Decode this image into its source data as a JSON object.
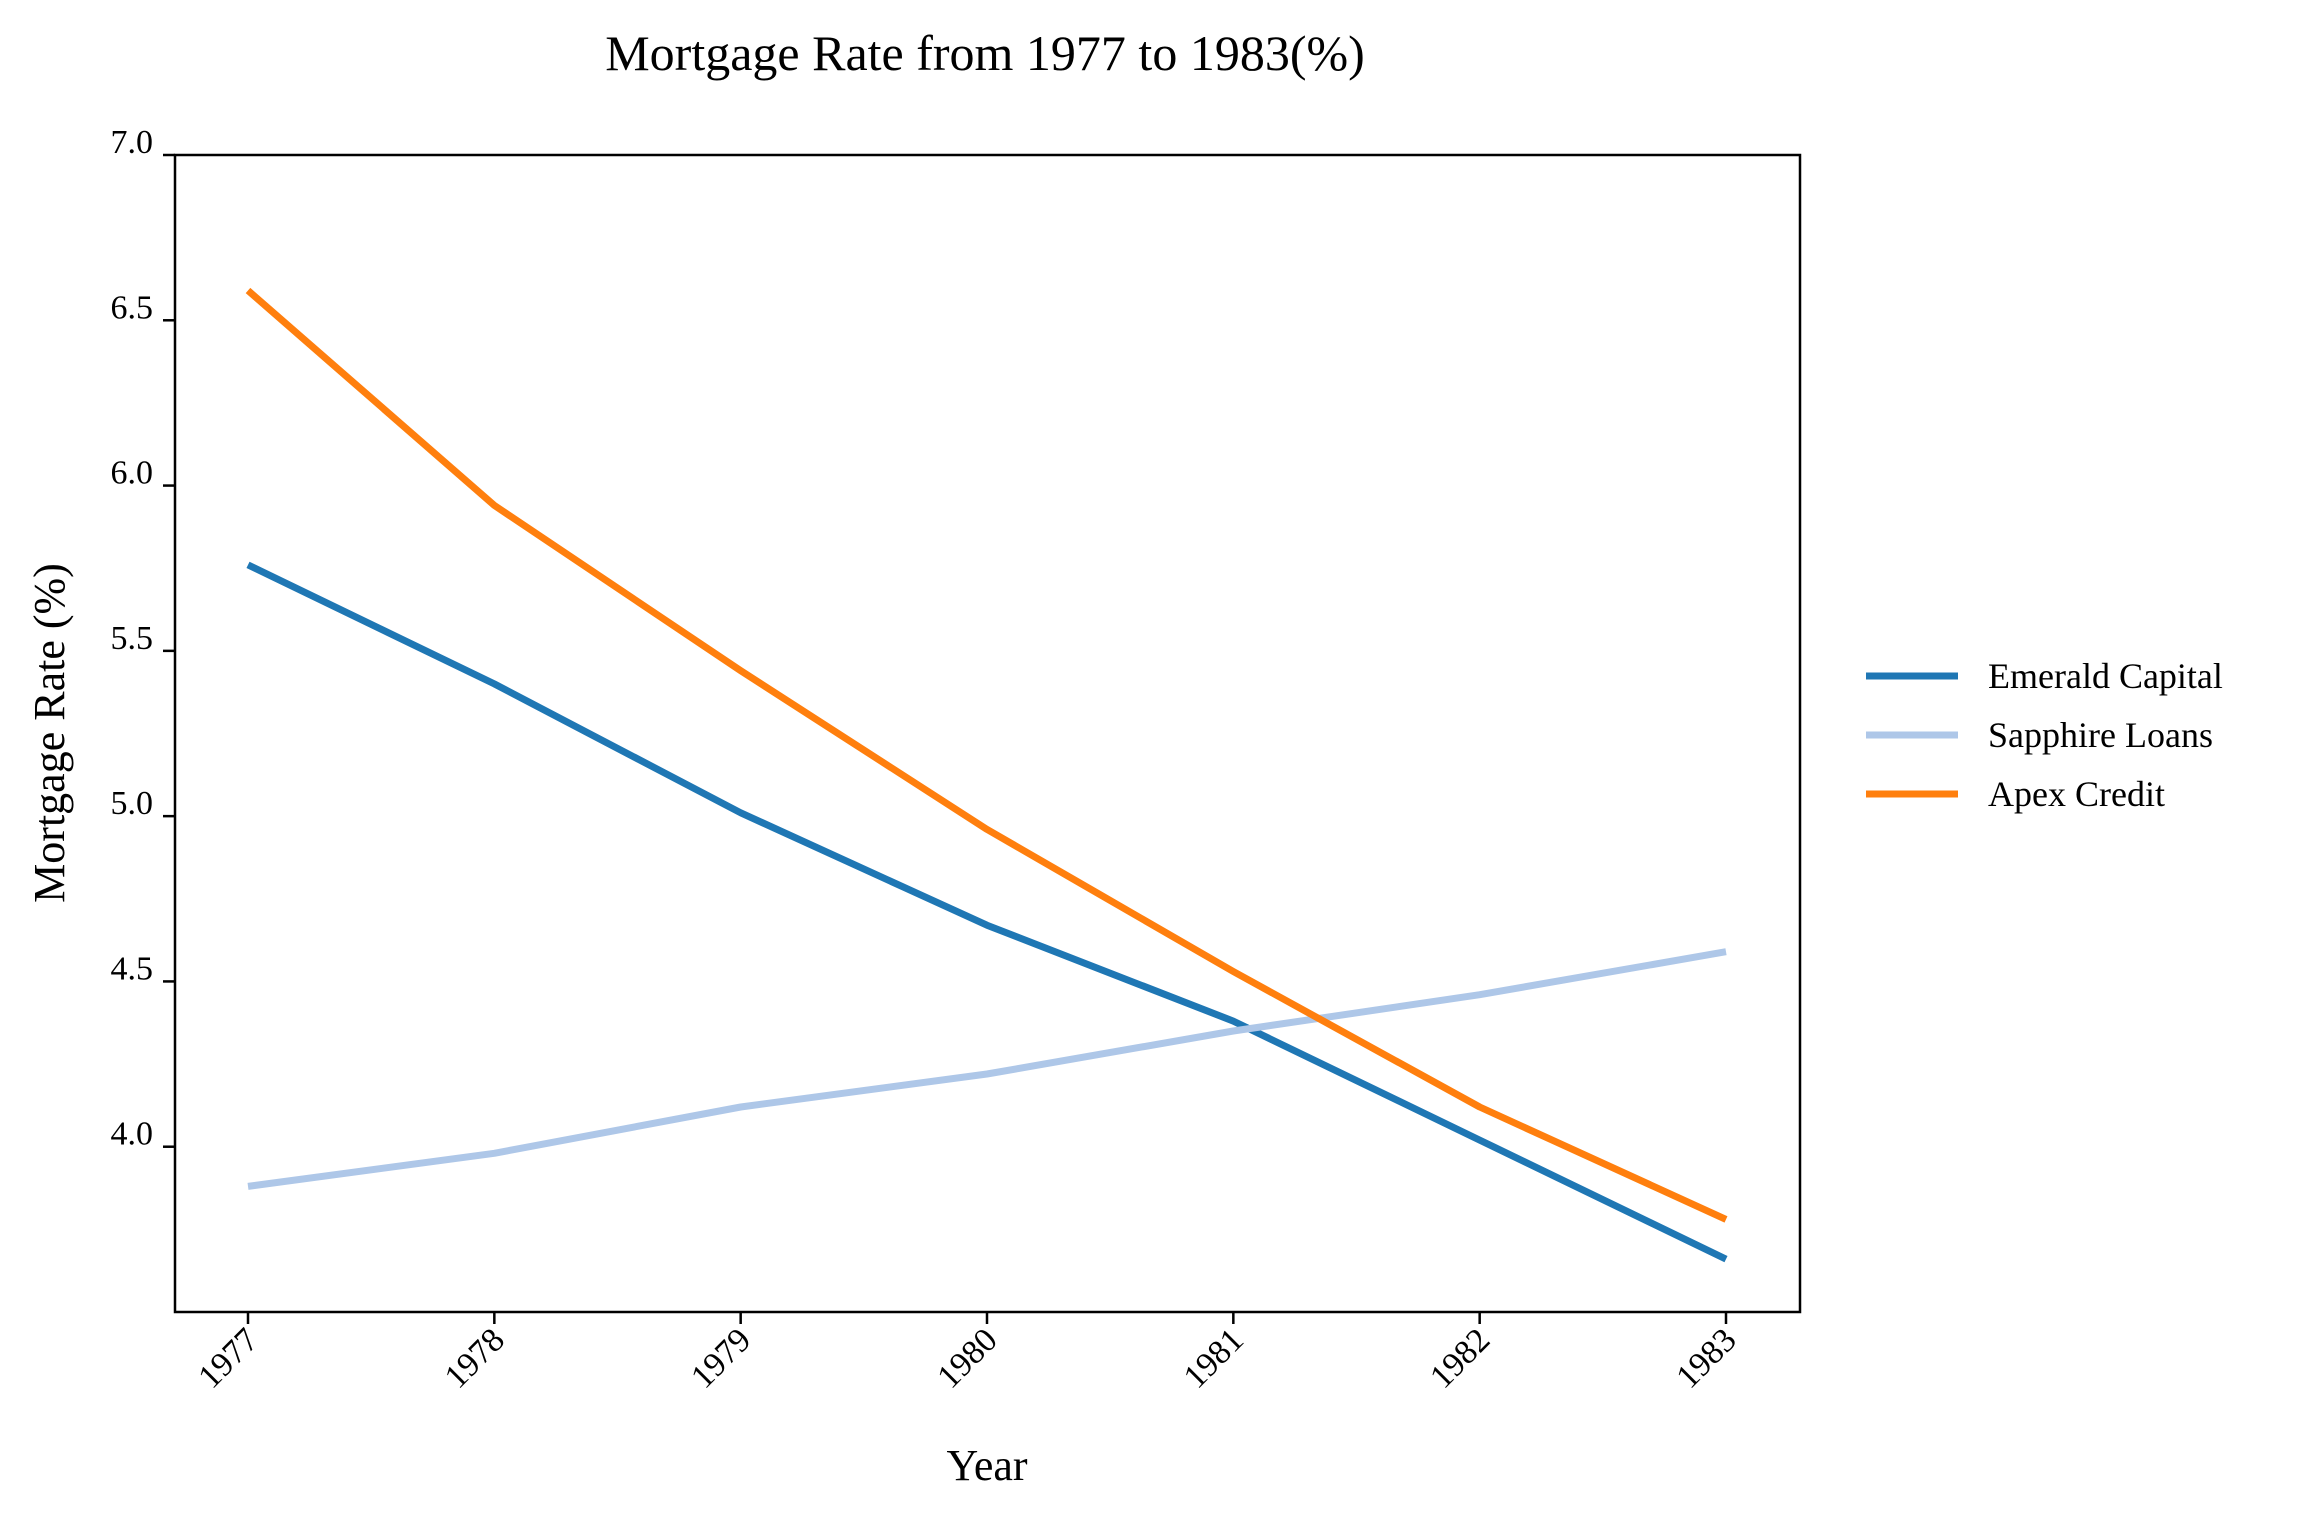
{
  "chart_data": {
    "type": "line",
    "title": "Mortgage Rate from 1977 to 1983(%)",
    "xlabel": "Year",
    "ylabel": "Mortgage Rate (%)",
    "x": [
      "1977",
      "1978",
      "1979",
      "1980",
      "1981",
      "1982",
      "1983"
    ],
    "ylim": [
      3.5,
      7.0
    ],
    "yticks": [
      "4.0",
      "4.5",
      "5.0",
      "5.5",
      "6.0",
      "6.5",
      "7.0"
    ],
    "grid": false,
    "legend_position": "right",
    "series": [
      {
        "name": "Emerald Capital",
        "color": "#1f77b4",
        "values": [
          5.76,
          5.4,
          5.01,
          4.67,
          4.38,
          4.02,
          3.66
        ]
      },
      {
        "name": "Sapphire Loans",
        "color": "#aec7e8",
        "values": [
          3.88,
          3.98,
          4.12,
          4.22,
          4.35,
          4.46,
          4.59
        ]
      },
      {
        "name": "Apex Credit",
        "color": "#ff7f0e",
        "values": [
          6.59,
          5.94,
          5.44,
          4.96,
          4.53,
          4.12,
          3.78
        ]
      }
    ]
  }
}
